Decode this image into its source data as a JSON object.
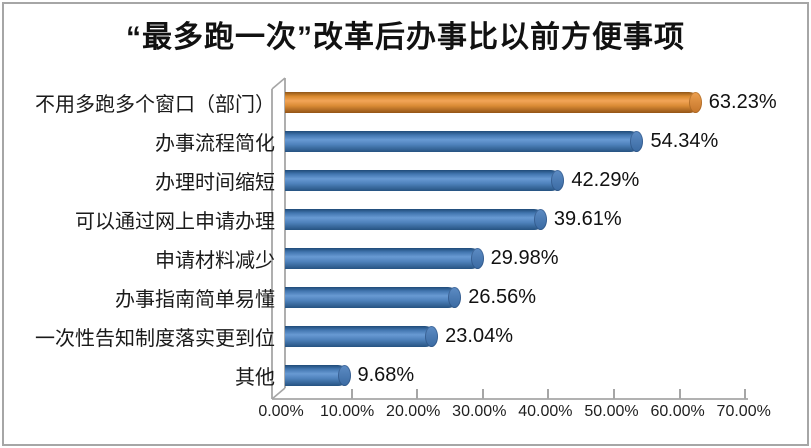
{
  "window": {
    "background": "#FFFFFF",
    "border_color": "#A6A6A6"
  },
  "chart_data": {
    "type": "bar",
    "orientation": "horizontal",
    "style": "3d-cylinder",
    "title": "“最多跑一次”改革后办事比以前方便事项",
    "categories": [
      "不用多跑多个窗口（部门）",
      "办事流程简化",
      "办理时间缩短",
      "可以通过网上申请办理",
      "申请材料减少",
      "办事指南简单易懂",
      "一次性告知制度落实更到位",
      "其他"
    ],
    "values": [
      63.23,
      54.34,
      42.29,
      39.61,
      29.98,
      26.56,
      23.04,
      9.68
    ],
    "value_labels": [
      "63.23%",
      "54.34%",
      "42.29%",
      "39.61%",
      "29.98%",
      "26.56%",
      "23.04%",
      "9.68%"
    ],
    "bar_colors": [
      "#E8913D",
      "#4A7AB5",
      "#4A7AB5",
      "#4A7AB5",
      "#4A7AB5",
      "#4A7AB5",
      "#4A7AB5",
      "#4A7AB5"
    ],
    "accent_color": "#E8913D",
    "default_color": "#4A7AB5",
    "axis_color": "#A6A6A6",
    "x_ticks": [
      "0.00%",
      "10.00%",
      "20.00%",
      "30.00%",
      "40.00%",
      "50.00%",
      "60.00%",
      "70.00%"
    ],
    "xlim": [
      0,
      70
    ],
    "xlabel": "",
    "ylabel": "",
    "grid": false,
    "legend": null
  }
}
